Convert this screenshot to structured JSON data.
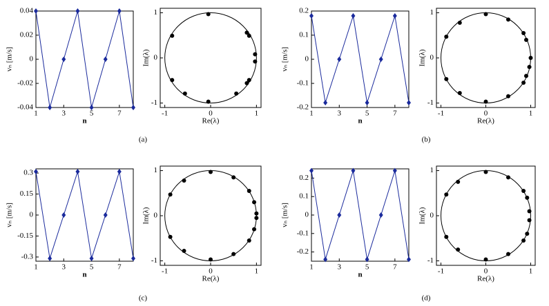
{
  "panel_labels": [
    "(a)",
    "(b)",
    "(c)",
    "(d)"
  ],
  "chart_data": [
    {
      "type": "line",
      "xlabel": "n",
      "ylabel": "vₙ [m/s]",
      "color": "#1a2a9c",
      "x": [
        1,
        2,
        3,
        4,
        5,
        6,
        7,
        8
      ],
      "values": [
        0.04,
        -0.04,
        0,
        0.04,
        -0.04,
        0,
        0.04,
        -0.04
      ],
      "xlim": [
        1,
        8
      ],
      "xticks": [
        1,
        3,
        5,
        7
      ],
      "ylim": [
        -0.04,
        0.04
      ],
      "yticks": [
        -0.04,
        -0.02,
        0,
        0.02,
        0.04
      ]
    },
    {
      "type": "scatter",
      "xlabel": "Re(λ)",
      "ylabel": "Im(λ)",
      "color": "#000000",
      "x": [
        -0.05,
        -0.84,
        -0.84,
        -0.56,
        -0.05,
        0.56,
        0.79,
        0.84,
        0.97,
        0.97,
        0.84,
        0.79
      ],
      "values": [
        0.97,
        0.49,
        -0.49,
        -0.79,
        -0.97,
        -0.79,
        -0.56,
        -0.49,
        -0.08,
        0.08,
        0.49,
        0.56
      ],
      "xlim": [
        -1.1,
        1.1
      ],
      "xticks": [
        -1,
        0,
        1
      ],
      "ylim": [
        -1.1,
        1.1
      ],
      "yticks": [
        -1,
        0,
        1
      ]
    },
    {
      "type": "line",
      "xlabel": "n",
      "ylabel": "vₙ [m/s]",
      "color": "#1a2a9c",
      "x": [
        1,
        2,
        3,
        4,
        5,
        6,
        7,
        8
      ],
      "values": [
        0.18,
        -0.18,
        0,
        0.18,
        -0.18,
        0,
        0.18,
        -0.18
      ],
      "xlim": [
        1,
        8
      ],
      "xticks": [
        1,
        3,
        5,
        7
      ],
      "ylim": [
        -0.2,
        0.2
      ],
      "yticks": [
        -0.2,
        -0.1,
        0,
        0.1,
        0.2
      ]
    },
    {
      "type": "scatter",
      "xlabel": "Re(λ)",
      "ylabel": "Im(λ)",
      "color": "#000000",
      "x": [
        0,
        -0.88,
        -0.88,
        -0.58,
        0,
        0.5,
        0.84,
        0.9,
        0.97,
        1.0,
        0.9,
        0.84,
        0.5,
        -0.58
      ],
      "values": [
        0.97,
        0.47,
        -0.47,
        -0.78,
        -0.97,
        -0.85,
        -0.55,
        -0.4,
        -0.2,
        0,
        0.4,
        0.55,
        0.85,
        0.78
      ],
      "xlim": [
        -1.1,
        1.1
      ],
      "xticks": [
        -1,
        0,
        1
      ],
      "ylim": [
        -1.1,
        1.1
      ],
      "yticks": [
        -1,
        0,
        1
      ]
    },
    {
      "type": "line",
      "xlabel": "n",
      "ylabel": "vₙ [m/s]",
      "color": "#1a2a9c",
      "x": [
        1,
        2,
        3,
        4,
        5,
        6,
        7,
        8
      ],
      "values": [
        0.31,
        -0.31,
        0,
        0.31,
        -0.31,
        0,
        0.31,
        -0.31
      ],
      "xlim": [
        1,
        8
      ],
      "xticks": [
        1,
        3,
        5,
        7
      ],
      "ylim": [
        -0.33,
        0.33
      ],
      "yticks": [
        -0.3,
        -0.15,
        0,
        0.15,
        0.3
      ]
    },
    {
      "type": "scatter",
      "xlabel": "Re(λ)",
      "ylabel": "Im(λ)",
      "color": "#000000",
      "x": [
        0,
        -0.88,
        -0.88,
        -0.58,
        0,
        0.5,
        0.84,
        0.95,
        1.0,
        1.0,
        0.95,
        0.84,
        0.5,
        -0.58
      ],
      "values": [
        0.97,
        0.47,
        -0.47,
        -0.78,
        -0.97,
        -0.85,
        -0.55,
        -0.3,
        -0.05,
        0.05,
        0.3,
        0.55,
        0.85,
        0.78
      ],
      "xlim": [
        -1.1,
        1.1
      ],
      "xticks": [
        -1,
        0,
        1
      ],
      "ylim": [
        -1.1,
        1.1
      ],
      "yticks": [
        -1,
        0,
        1
      ]
    },
    {
      "type": "line",
      "xlabel": "n",
      "ylabel": "vₙ [m/s]",
      "color": "#1a2a9c",
      "x": [
        1,
        2,
        3,
        4,
        5,
        6,
        7,
        8
      ],
      "values": [
        0.24,
        -0.24,
        0,
        0.24,
        -0.24,
        0,
        0.24,
        -0.24
      ],
      "xlim": [
        1,
        8
      ],
      "xticks": [
        1,
        3,
        5,
        7
      ],
      "ylim": [
        -0.25,
        0.25
      ],
      "yticks": [
        -0.2,
        -0.1,
        0,
        0.1,
        0.2
      ]
    },
    {
      "type": "scatter",
      "xlabel": "Re(λ)",
      "ylabel": "Im(λ)",
      "color": "#000000",
      "x": [
        0,
        -0.62,
        -0.88,
        -0.88,
        -0.62,
        0,
        0.5,
        0.84,
        0.92,
        0.97,
        0.97,
        0.92,
        0.84,
        0.5
      ],
      "values": [
        0.97,
        0.75,
        0.47,
        -0.47,
        -0.75,
        -0.97,
        -0.85,
        -0.55,
        -0.4,
        -0.1,
        0.1,
        0.4,
        0.55,
        0.85
      ],
      "xlim": [
        -1.1,
        1.1
      ],
      "xticks": [
        -1,
        0,
        1
      ],
      "ylim": [
        -1.1,
        1.1
      ],
      "yticks": [
        -1,
        0,
        1
      ]
    }
  ]
}
